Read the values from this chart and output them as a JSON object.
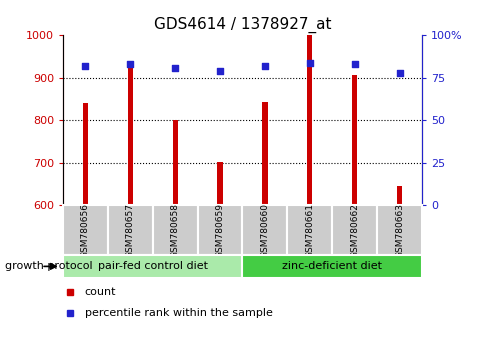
{
  "title": "GDS4614 / 1378927_at",
  "samples": [
    "GSM780656",
    "GSM780657",
    "GSM780658",
    "GSM780659",
    "GSM780660",
    "GSM780661",
    "GSM780662",
    "GSM780663"
  ],
  "counts": [
    840,
    930,
    800,
    703,
    843,
    1000,
    907,
    645
  ],
  "percentiles": [
    82,
    83,
    81,
    79,
    82,
    84,
    83,
    78
  ],
  "ylim_left": [
    600,
    1000
  ],
  "ylim_right": [
    0,
    100
  ],
  "yticks_left": [
    600,
    700,
    800,
    900,
    1000
  ],
  "yticks_right": [
    0,
    25,
    50,
    75,
    100
  ],
  "ytick_labels_right": [
    "0",
    "25",
    "50",
    "75",
    "100%"
  ],
  "grid_lines": [
    700,
    800,
    900
  ],
  "bar_color": "#cc0000",
  "dot_color": "#2222cc",
  "bar_width": 0.12,
  "group1_label": "pair-fed control diet",
  "group2_label": "zinc-deficient diet",
  "group1_indices": [
    0,
    1,
    2,
    3
  ],
  "group2_indices": [
    4,
    5,
    6,
    7
  ],
  "group1_bg": "#aaeaaa",
  "group2_bg": "#44cc44",
  "sample_bg": "#cccccc",
  "legend_count_label": "count",
  "legend_pct_label": "percentile rank within the sample",
  "growth_protocol_label": "growth protocol",
  "left_tick_color": "#cc0000",
  "right_tick_color": "#2222cc",
  "title_fontsize": 11,
  "tick_fontsize": 8,
  "label_fontsize": 8
}
